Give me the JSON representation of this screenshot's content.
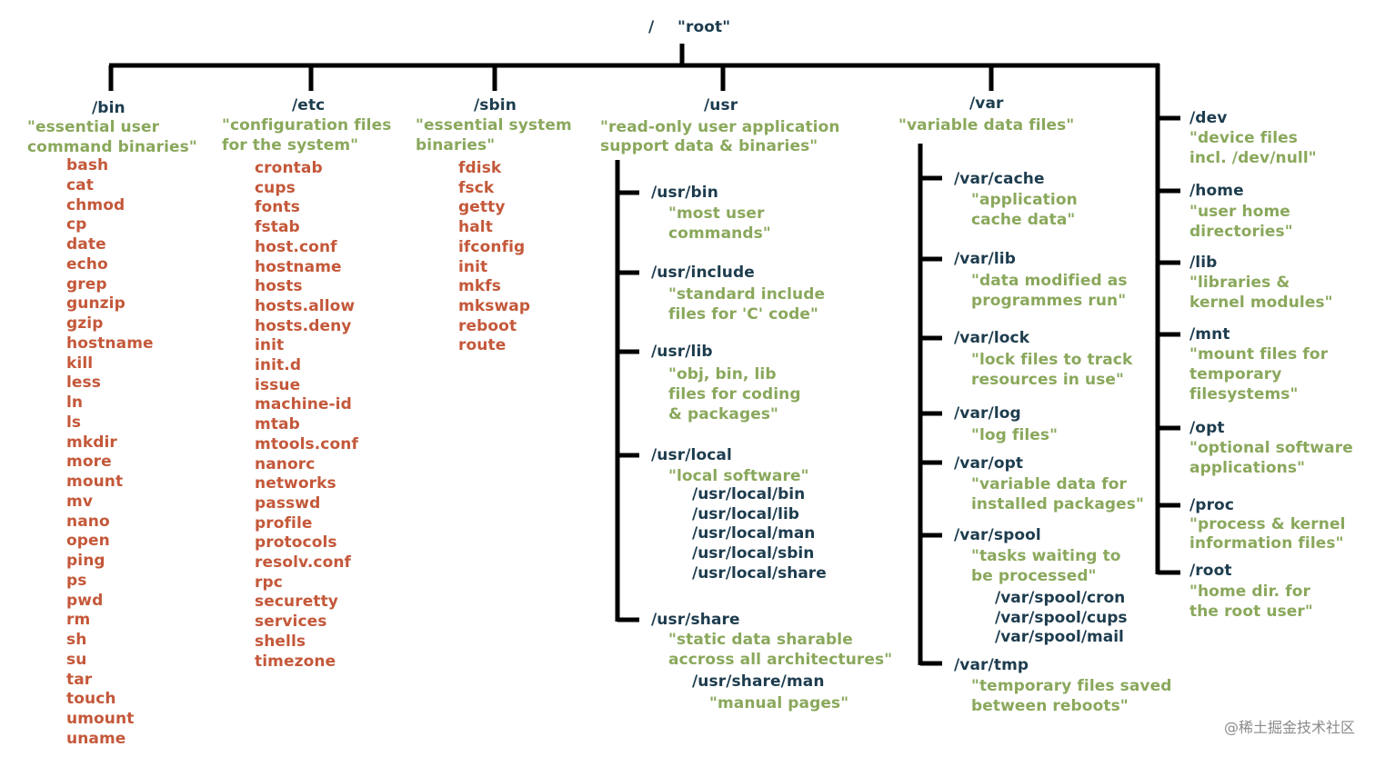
{
  "root": {
    "slash": "/",
    "label": "\"root\""
  },
  "bin": {
    "path": "/bin",
    "desc": [
      "\"essential user",
      "command binaries\""
    ],
    "files": [
      "bash",
      "cat",
      "chmod",
      "cp",
      "date",
      "echo",
      "grep",
      "gunzip",
      "gzip",
      "hostname",
      "kill",
      "less",
      "ln",
      "ls",
      "mkdir",
      "more",
      "mount",
      "mv",
      "nano",
      "open",
      "ping",
      "ps",
      "pwd",
      "rm",
      "sh",
      "su",
      "tar",
      "touch",
      "umount",
      "uname"
    ]
  },
  "etc": {
    "path": "/etc",
    "desc": [
      "\"configuration files",
      "for the system\""
    ],
    "files": [
      "crontab",
      "cups",
      "fonts",
      "fstab",
      "host.conf",
      "hostname",
      "hosts",
      "hosts.allow",
      "hosts.deny",
      "init",
      "init.d",
      "issue",
      "machine-id",
      "mtab",
      "mtools.conf",
      "nanorc",
      "networks",
      "passwd",
      "profile",
      "protocols",
      "resolv.conf",
      "rpc",
      "securetty",
      "services",
      "shells",
      "timezone"
    ]
  },
  "sbin": {
    "path": "/sbin",
    "desc": [
      "\"essential system",
      "binaries\""
    ],
    "files": [
      "fdisk",
      "fsck",
      "getty",
      "halt",
      "ifconfig",
      "init",
      "mkfs",
      "mkswap",
      "reboot",
      "route"
    ]
  },
  "usr": {
    "path": "/usr",
    "desc": [
      "\"read-only user application",
      "support data & binaries\""
    ],
    "children": [
      {
        "path": "/usr/bin",
        "desc": [
          "\"most user",
          "commands\""
        ]
      },
      {
        "path": "/usr/include",
        "desc": [
          "\"standard include",
          "files for 'C' code\""
        ]
      },
      {
        "path": "/usr/lib",
        "desc": [
          "\"obj, bin, lib",
          "files for coding",
          "& packages\""
        ]
      },
      {
        "path": "/usr/local",
        "desc": [
          "\"local software\""
        ],
        "sub": [
          "/usr/local/bin",
          "/usr/local/lib",
          "/usr/local/man",
          "/usr/local/sbin",
          "/usr/local/share"
        ]
      },
      {
        "path": "/usr/share",
        "desc": [
          "\"static data sharable",
          "accross all architectures\""
        ],
        "sub": [
          "/usr/share/man"
        ],
        "subdesc": "\"manual pages\""
      }
    ]
  },
  "var": {
    "path": "/var",
    "desc": [
      "\"variable data files\""
    ],
    "children": [
      {
        "path": "/var/cache",
        "desc": [
          "\"application",
          "cache data\""
        ]
      },
      {
        "path": "/var/lib",
        "desc": [
          "\"data modified as",
          "programmes run\""
        ]
      },
      {
        "path": "/var/lock",
        "desc": [
          "\"lock files to track",
          "resources in use\""
        ]
      },
      {
        "path": "/var/log",
        "desc": [
          "\"log files\""
        ]
      },
      {
        "path": "/var/opt",
        "desc": [
          "\"variable data for",
          "installed packages\""
        ]
      },
      {
        "path": "/var/spool",
        "desc": [
          "\"tasks waiting to",
          "be processed\""
        ],
        "sub": [
          "/var/spool/cron",
          "/var/spool/cups",
          "/var/spool/mail"
        ]
      },
      {
        "path": "/var/tmp",
        "desc": [
          "\"temporary files saved",
          "between reboots\""
        ]
      }
    ]
  },
  "right": [
    {
      "path": "/dev",
      "desc": [
        "\"device files",
        "incl. /dev/null\""
      ]
    },
    {
      "path": "/home",
      "desc": [
        "\"user home",
        "directories\""
      ]
    },
    {
      "path": "/lib",
      "desc": [
        "\"libraries &",
        "kernel modules\""
      ]
    },
    {
      "path": "/mnt",
      "desc": [
        "\"mount files for",
        "temporary",
        "filesystems\""
      ]
    },
    {
      "path": "/opt",
      "desc": [
        "\"optional software",
        "applications\""
      ]
    },
    {
      "path": "/proc",
      "desc": [
        "\"process & kernel",
        "information files\""
      ]
    },
    {
      "path": "/root",
      "desc": [
        "\"home dir. for",
        "the root user\""
      ]
    }
  ],
  "watermark": "@稀土掘金技术社区",
  "colors": {
    "line": "#000000",
    "dir": "#1d3c4e",
    "desc": "#8aa85c",
    "file": "#c4583a"
  }
}
